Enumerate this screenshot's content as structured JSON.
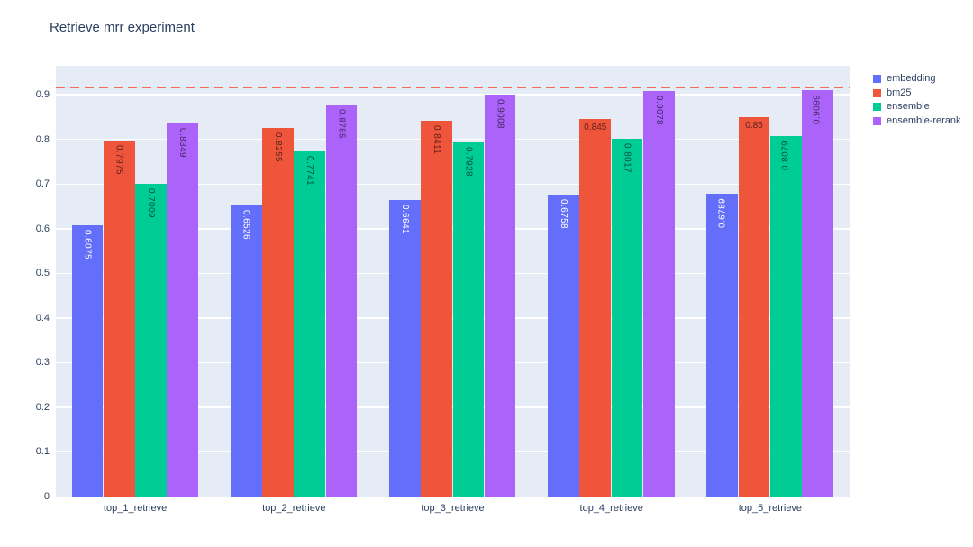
{
  "chart_data": {
    "type": "bar",
    "title": "Retrieve mrr experiment",
    "categories": [
      "top_1_retrieve",
      "top_2_retrieve",
      "top_3_retrieve",
      "top_4_retrieve",
      "top_5_retrieve"
    ],
    "series": [
      {
        "name": "embedding",
        "color": "#636EFA",
        "label_color": "#FFFFFF",
        "values": [
          0.6075,
          0.6526,
          0.6641,
          0.6758,
          0.6789
        ]
      },
      {
        "name": "bm25",
        "color": "#EF553B",
        "label_color": "#60221B",
        "values": [
          0.7975,
          0.8255,
          0.8411,
          0.845,
          0.85
        ]
      },
      {
        "name": "ensemble",
        "color": "#00CC96",
        "label_color": "#00523C",
        "values": [
          0.7009,
          0.7741,
          0.7928,
          0.8017,
          0.8079
        ]
      },
      {
        "name": "ensemble-rerank",
        "color": "#AB63FA",
        "label_color": "#45286B",
        "values": [
          0.8349,
          0.8785,
          0.9008,
          0.9078,
          0.9099
        ]
      }
    ],
    "y_ticks": [
      "0",
      "0.1",
      "0.2",
      "0.3",
      "0.4",
      "0.5",
      "0.6",
      "0.7",
      "0.8",
      "0.9"
    ],
    "ylim": [
      0,
      0.965
    ],
    "xlabel": "",
    "ylabel": "",
    "grid": true,
    "legend_position": "top-right",
    "reference_line": {
      "value": 0.917,
      "style": "dash",
      "color": "#F8695A"
    },
    "plot_bg": "#E5ECF6",
    "grid_color": "#FFFFFF",
    "text_color": "#2A3F5F"
  }
}
